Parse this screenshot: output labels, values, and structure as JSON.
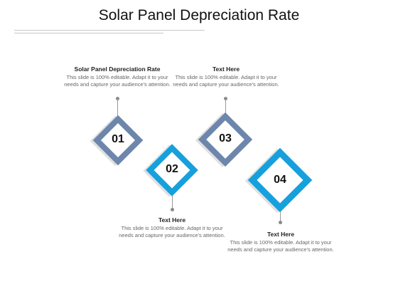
{
  "slide": {
    "title": "Solar Panel Depreciation Rate"
  },
  "colors": {
    "slate_blue": "#6d86ab",
    "bright_blue": "#16a0dc",
    "connector": "#999999"
  },
  "steps": [
    {
      "number": "01",
      "heading": "Solar Panel Depreciation Rate",
      "body": "This slide is 100% editable. Adapt it to your needs and capture your audience's attention.",
      "color": "slate_blue"
    },
    {
      "number": "02",
      "heading": "Text Here",
      "body": "This slide is 100% editable. Adapt it to your needs and capture your audience's attention.",
      "color": "bright_blue"
    },
    {
      "number": "03",
      "heading": "Text Here",
      "body": "This slide is 100% editable. Adapt it to your needs and capture your audience's attention.",
      "color": "slate_blue"
    },
    {
      "number": "04",
      "heading": "Text Here",
      "body": "This slide is 100% editable. Adapt it to your needs and capture your audience's attention.",
      "color": "bright_blue"
    }
  ]
}
